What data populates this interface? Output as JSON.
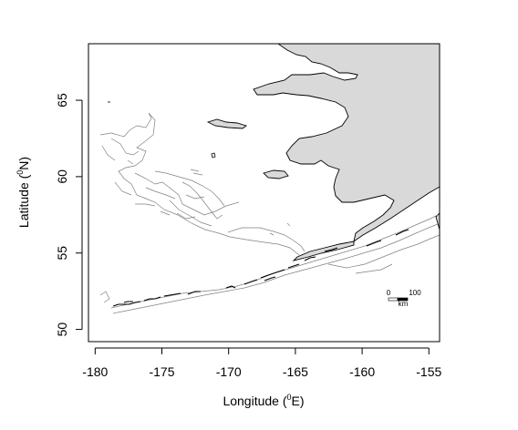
{
  "map": {
    "x_axis": {
      "label": "Longitude (",
      "label_sup": "0",
      "label_end": "E)",
      "ticks": [
        -180,
        -175,
        -170,
        -165,
        -160,
        -155
      ],
      "range": [
        -180.5,
        -154.2
      ]
    },
    "y_axis": {
      "label": "Latitude (",
      "label_sup": "0",
      "label_end": "N)",
      "ticks": [
        50,
        55,
        60,
        65
      ],
      "range": [
        49.2,
        68.7
      ]
    },
    "scale_bar": {
      "start_label": "0",
      "end_label": "100",
      "unit": "km"
    },
    "colors": {
      "land_fill": "#d9d9d9",
      "coast": "#000000",
      "contour": "#808080"
    }
  }
}
